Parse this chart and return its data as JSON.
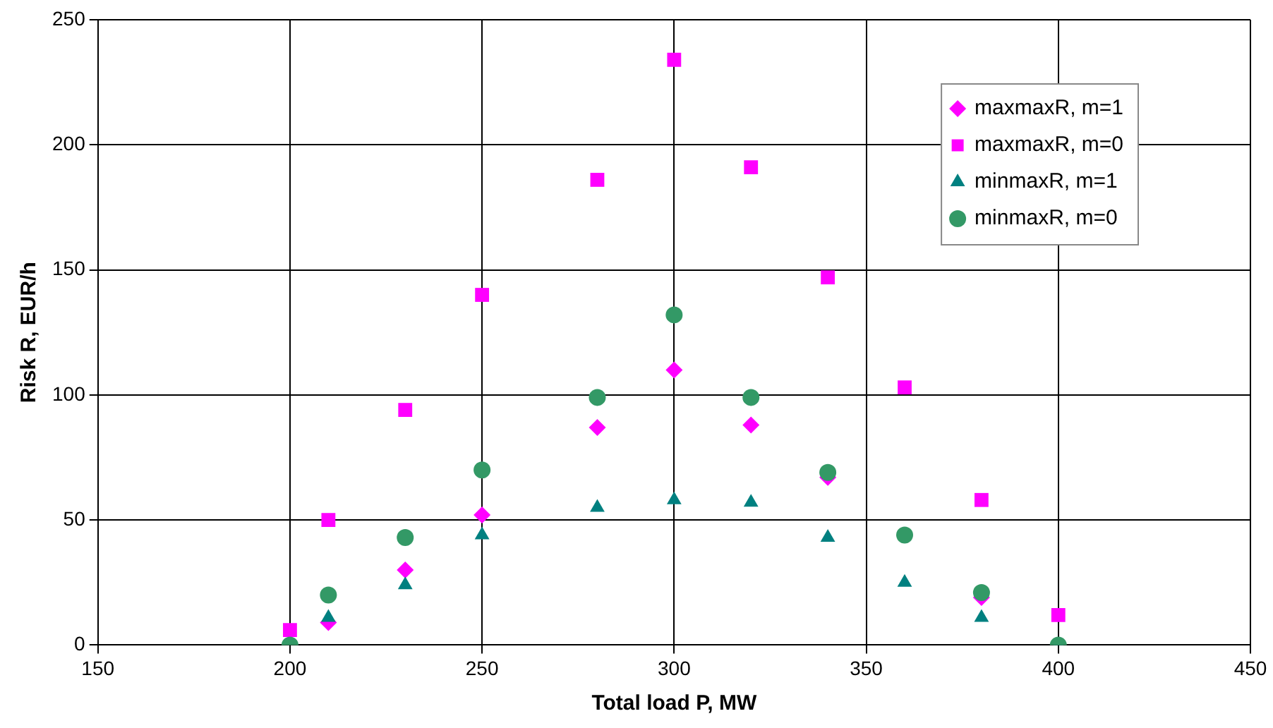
{
  "chart_data": {
    "type": "scatter",
    "xlabel": "Total load P, MW",
    "ylabel": "Risk R, EUR/h",
    "x": [
      200,
      210,
      230,
      250,
      280,
      300,
      320,
      340,
      360,
      380,
      400
    ],
    "series": [
      {
        "name": "maxmaxR, m=1",
        "color": "#ff00ff",
        "marker": "diamond",
        "values": [
          null,
          9,
          30,
          52,
          87,
          110,
          88,
          67,
          null,
          19,
          null
        ]
      },
      {
        "name": "maxmaxR, m=0",
        "color": "#ff00ff",
        "marker": "square",
        "values": [
          6,
          50,
          94,
          140,
          186,
          234,
          191,
          147,
          103,
          58,
          12
        ]
      },
      {
        "name": "minmaxR, m=1",
        "color": "#008080",
        "marker": "triangle",
        "values": [
          null,
          11,
          24,
          44,
          55,
          58,
          57,
          43,
          25,
          11,
          0
        ]
      },
      {
        "name": "minmaxR, m=0",
        "color": "#339966",
        "marker": "circle",
        "values": [
          0,
          20,
          43,
          70,
          99,
          132,
          99,
          69,
          44,
          21,
          0
        ]
      }
    ],
    "xlim": [
      150,
      450
    ],
    "xticks": [
      150,
      200,
      250,
      300,
      350,
      400,
      450
    ],
    "ylim": [
      0,
      250
    ],
    "yticks": [
      0,
      50,
      100,
      150,
      200,
      250
    ],
    "grid": true,
    "legend": "top right"
  }
}
